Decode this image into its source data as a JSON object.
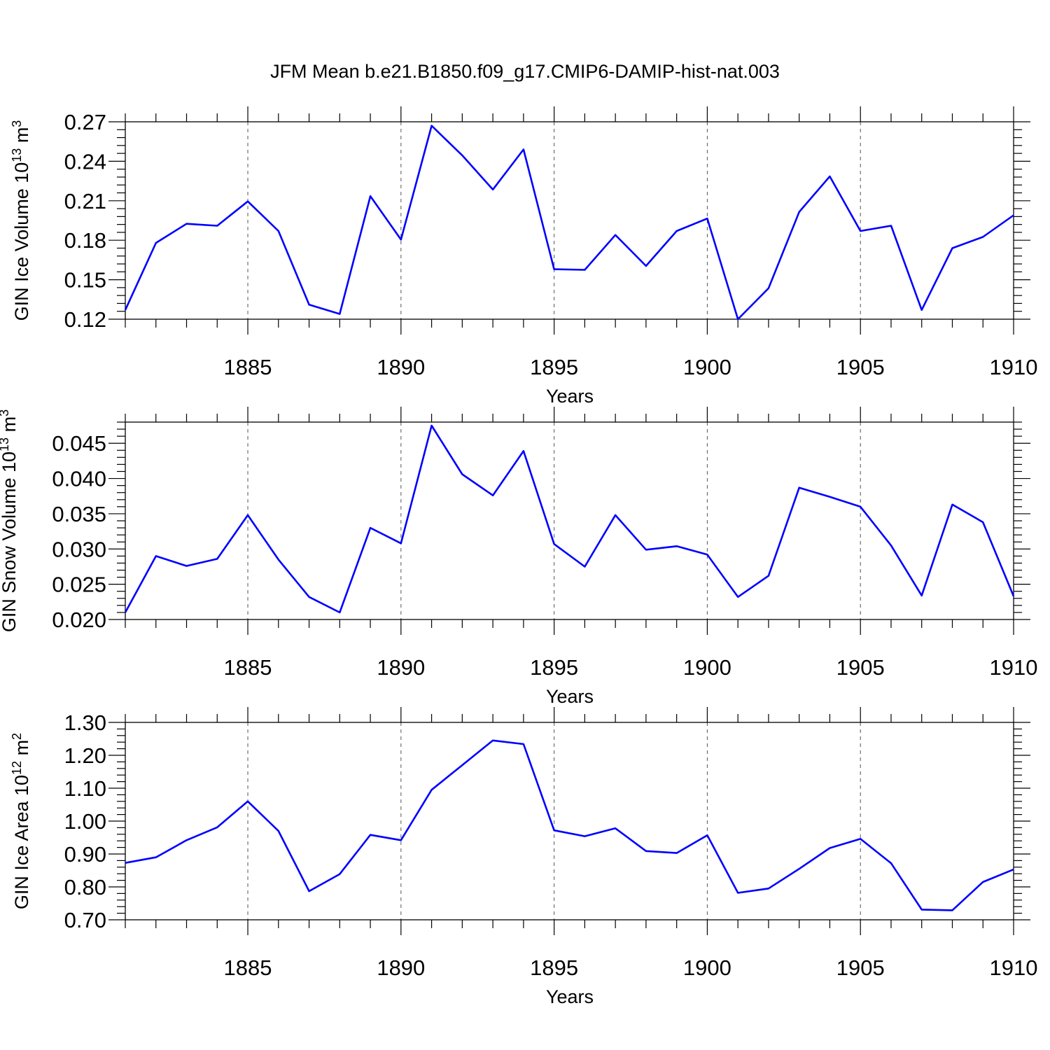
{
  "figure": {
    "title": "JFM Mean b.e21.B1850.f09_g17.CMIP6-DAMIP-hist-nat.003",
    "line_color": "#0000ff"
  },
  "chart_data": [
    {
      "type": "line",
      "xlabel": "Years",
      "ylabel": "GIN Ice Volume 10",
      "ylabel_exp": "13",
      "ylabel_unit": "m",
      "ylabel_unit_exp": "3",
      "xlim": [
        1881,
        1910
      ],
      "ylim": [
        0.12,
        0.27
      ],
      "x_ticks": [
        1885,
        1890,
        1895,
        1900,
        1905,
        1910
      ],
      "y_ticks": [
        "0.12",
        "0.15",
        "0.18",
        "0.21",
        "0.24",
        "0.27"
      ],
      "grid": "dashed vertical lines at labelled years",
      "x": [
        1881,
        1882,
        1883,
        1884,
        1885,
        1886,
        1887,
        1888,
        1889,
        1890,
        1891,
        1892,
        1893,
        1894,
        1895,
        1896,
        1897,
        1898,
        1899,
        1900,
        1901,
        1902,
        1903,
        1904,
        1905,
        1906,
        1907,
        1908,
        1909,
        1910
      ],
      "values": [
        0.127,
        0.178,
        0.1925,
        0.191,
        0.2095,
        0.187,
        0.131,
        0.124,
        0.2135,
        0.1805,
        0.267,
        0.2445,
        0.2185,
        0.249,
        0.158,
        0.1575,
        0.184,
        0.1605,
        0.187,
        0.1965,
        0.12,
        0.1435,
        0.2015,
        0.2285,
        0.187,
        0.191,
        0.127,
        0.174,
        0.1825,
        0.199
      ]
    },
    {
      "type": "line",
      "xlabel": "Years",
      "ylabel": "GIN Snow Volume 10",
      "ylabel_exp": "13",
      "ylabel_unit": "m",
      "ylabel_unit_exp": "3",
      "xlim": [
        1881,
        1910
      ],
      "ylim": [
        0.02,
        0.048
      ],
      "x_ticks": [
        1885,
        1890,
        1895,
        1900,
        1905,
        1910
      ],
      "y_ticks": [
        "0.020",
        "0.025",
        "0.030",
        "0.035",
        "0.040",
        "0.045"
      ],
      "grid": "dashed vertical lines at labelled years",
      "x": [
        1881,
        1882,
        1883,
        1884,
        1885,
        1886,
        1887,
        1888,
        1889,
        1890,
        1891,
        1892,
        1893,
        1894,
        1895,
        1896,
        1897,
        1898,
        1899,
        1900,
        1901,
        1902,
        1903,
        1904,
        1905,
        1906,
        1907,
        1908,
        1909,
        1910
      ],
      "values": [
        0.021,
        0.029,
        0.0276,
        0.0286,
        0.0348,
        0.0285,
        0.0232,
        0.021,
        0.033,
        0.0308,
        0.0475,
        0.0406,
        0.0376,
        0.0439,
        0.0307,
        0.0275,
        0.0348,
        0.0299,
        0.0304,
        0.0292,
        0.0232,
        0.0262,
        0.0387,
        0.0374,
        0.036,
        0.0305,
        0.0234,
        0.0363,
        0.0338,
        0.0233
      ]
    },
    {
      "type": "line",
      "xlabel": "Years",
      "ylabel": "GIN Ice Area 10",
      "ylabel_exp": "12",
      "ylabel_unit": "m",
      "ylabel_unit_exp": "2",
      "xlim": [
        1881,
        1910
      ],
      "ylim": [
        0.7,
        1.3
      ],
      "x_ticks": [
        1885,
        1890,
        1895,
        1900,
        1905,
        1910
      ],
      "y_ticks": [
        "0.70",
        "0.80",
        "0.90",
        "1.00",
        "1.10",
        "1.20",
        "1.30"
      ],
      "grid": "dashed vertical lines at labelled years",
      "x": [
        1881,
        1882,
        1883,
        1884,
        1885,
        1886,
        1887,
        1888,
        1889,
        1890,
        1891,
        1892,
        1893,
        1894,
        1895,
        1896,
        1897,
        1898,
        1899,
        1900,
        1901,
        1902,
        1903,
        1904,
        1905,
        1906,
        1907,
        1908,
        1909,
        1910
      ],
      "values": [
        0.873,
        0.89,
        0.942,
        0.981,
        1.06,
        0.97,
        0.787,
        0.839,
        0.958,
        0.942,
        1.095,
        1.17,
        1.245,
        1.234,
        0.972,
        0.954,
        0.978,
        0.909,
        0.903,
        0.957,
        0.782,
        0.795,
        0.855,
        0.918,
        0.946,
        0.872,
        0.731,
        0.729,
        0.815,
        0.853
      ]
    }
  ]
}
